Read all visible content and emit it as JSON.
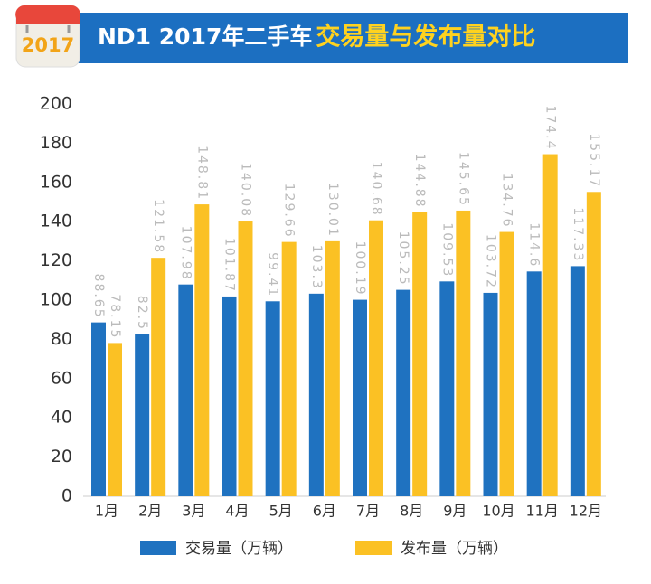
{
  "badge": "2017",
  "chart_data": {
    "type": "bar",
    "title": "ND1 2017年二手车",
    "title_highlight": "交易量与发布量对比",
    "categories": [
      "1月",
      "2月",
      "3月",
      "4月",
      "5月",
      "6月",
      "7月",
      "8月",
      "9月",
      "10月",
      "11月",
      "12月"
    ],
    "series": [
      {
        "name": "交易量（万辆）",
        "color": "#1f72c0",
        "values": [
          88.65,
          82.5,
          107.98,
          101.87,
          99.41,
          103.3,
          100.19,
          105.25,
          109.53,
          103.72,
          114.6,
          117.33
        ]
      },
      {
        "name": "发布量（万辆）",
        "color": "#fbc124",
        "values": [
          78.15,
          121.58,
          148.81,
          140.08,
          129.66,
          130.01,
          140.68,
          144.88,
          145.65,
          134.76,
          174.4,
          155.17
        ]
      }
    ],
    "ylim": [
      0,
      200
    ],
    "yticks": [
      0,
      20,
      40,
      60,
      80,
      100,
      120,
      140,
      160,
      180,
      200
    ]
  }
}
